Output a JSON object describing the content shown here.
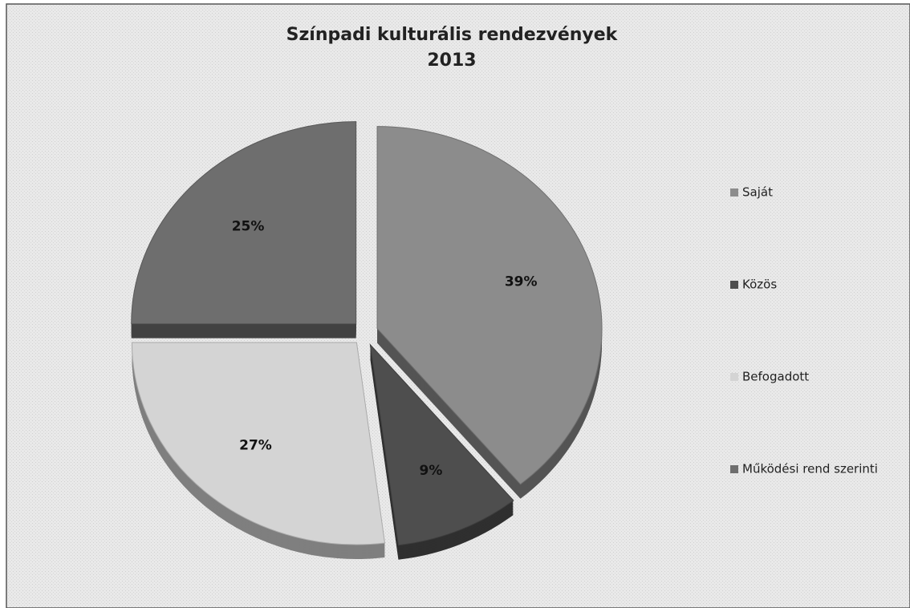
{
  "chart_data": {
    "type": "pie",
    "title": "Színpadi kulturális rendezvények",
    "subtitle": "2013",
    "categories": [
      "Saját",
      "Közös",
      "Befogadott",
      "Működési rend szerinti"
    ],
    "values": [
      39,
      9,
      27,
      25
    ],
    "value_labels": [
      "39%",
      "9%",
      "27%",
      "25%"
    ],
    "colors": [
      "#8c8c8c",
      "#4e4e4e",
      "#d4d4d4",
      "#6e6e6e"
    ],
    "legend": "right"
  }
}
